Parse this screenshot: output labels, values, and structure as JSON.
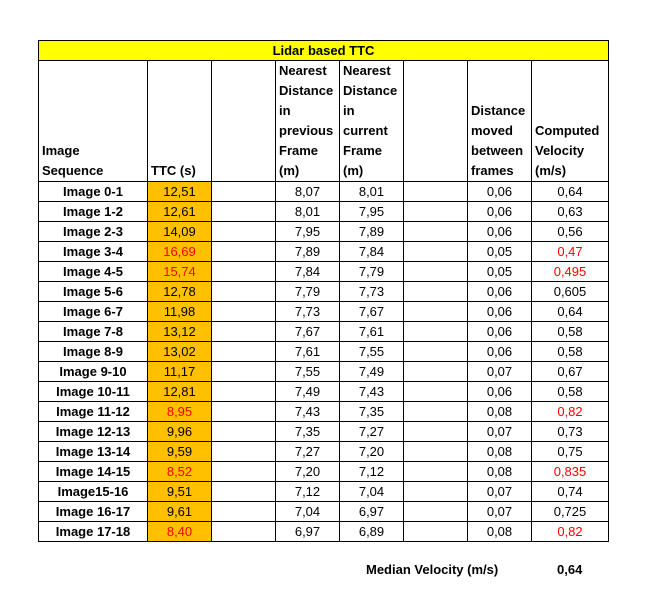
{
  "title": "Lidar based TTC",
  "headers": {
    "image_sequence": "Image Sequence",
    "ttc": "TTC (s)",
    "blank": "",
    "nearest_prev": "Nearest Distance in previous Frame (m)",
    "nearest_curr": "Nearest Distance in current Frame (m)",
    "distance_moved": "Distance moved between frames",
    "velocity": "Computed Velocity (m/s)"
  },
  "rows": [
    {
      "label": "Image 0-1",
      "ttc": "12,51",
      "prev": "8,07",
      "curr": "8,01",
      "moved": "0,06",
      "velocity": "0,64"
    },
    {
      "label": "Image 1-2",
      "ttc": "12,61",
      "prev": "8,01",
      "curr": "7,95",
      "moved": "0,06",
      "velocity": "0,63"
    },
    {
      "label": "Image 2-3",
      "ttc": "14,09",
      "prev": "7,95",
      "curr": "7,89",
      "moved": "0,06",
      "velocity": "0,56"
    },
    {
      "label": "Image 3-4",
      "ttc": "16,69",
      "prev": "7,89",
      "curr": "7,84",
      "moved": "0,05",
      "velocity": "0,47"
    },
    {
      "label": "Image 4-5",
      "ttc": "15,74",
      "prev": "7,84",
      "curr": "7,79",
      "moved": "0,05",
      "velocity": "0,495"
    },
    {
      "label": "Image 5-6",
      "ttc": "12,78",
      "prev": "7,79",
      "curr": "7,73",
      "moved": "0,06",
      "velocity": "0,605"
    },
    {
      "label": "Image 6-7",
      "ttc": "11,98",
      "prev": "7,73",
      "curr": "7,67",
      "moved": "0,06",
      "velocity": "0,64"
    },
    {
      "label": "Image 7-8",
      "ttc": "13,12",
      "prev": "7,67",
      "curr": "7,61",
      "moved": "0,06",
      "velocity": "0,58"
    },
    {
      "label": "Image 8-9",
      "ttc": "13,02",
      "prev": "7,61",
      "curr": "7,55",
      "moved": "0,06",
      "velocity": "0,58"
    },
    {
      "label": "Image 9-10",
      "ttc": "11,17",
      "prev": "7,55",
      "curr": "7,49",
      "moved": "0,07",
      "velocity": "0,67"
    },
    {
      "label": "Image 10-11",
      "ttc": "12,81",
      "prev": "7,49",
      "curr": "7,43",
      "moved": "0,06",
      "velocity": "0,58"
    },
    {
      "label": "Image 11-12",
      "ttc": "8,95",
      "prev": "7,43",
      "curr": "7,35",
      "moved": "0,08",
      "velocity": "0,82"
    },
    {
      "label": "Image 12-13",
      "ttc": "9,96",
      "prev": "7,35",
      "curr": "7,27",
      "moved": "0,07",
      "velocity": "0,73"
    },
    {
      "label": "Image 13-14",
      "ttc": "9,59",
      "prev": "7,27",
      "curr": "7,20",
      "moved": "0,08",
      "velocity": "0,75"
    },
    {
      "label": "Image 14-15",
      "ttc": "8,52",
      "prev": "7,20",
      "curr": "7,12",
      "moved": "0,08",
      "velocity": "0,835"
    },
    {
      "label": "Image15-16",
      "ttc": "9,51",
      "prev": "7,12",
      "curr": "7,04",
      "moved": "0,07",
      "velocity": "0,74"
    },
    {
      "label": "Image 16-17",
      "ttc": "9,61",
      "prev": "7,04",
      "curr": "6,97",
      "moved": "0,07",
      "velocity": "0,725"
    },
    {
      "label": "Image 17-18",
      "ttc": "8,40",
      "prev": "6,97",
      "curr": "6,89",
      "moved": "0,08",
      "velocity": "0,82"
    }
  ],
  "highlight_red_ttc_rows": [
    3,
    4,
    11,
    14,
    17
  ],
  "highlight_red_velocity_rows": [
    3,
    4,
    11,
    14,
    17
  ],
  "summary": {
    "label": "Median Velocity (m/s)",
    "value": "0,64"
  },
  "colors": {
    "title_bg": "#ffff00",
    "ttc_bg": "#ffc000",
    "red_text": "#ff0000"
  }
}
